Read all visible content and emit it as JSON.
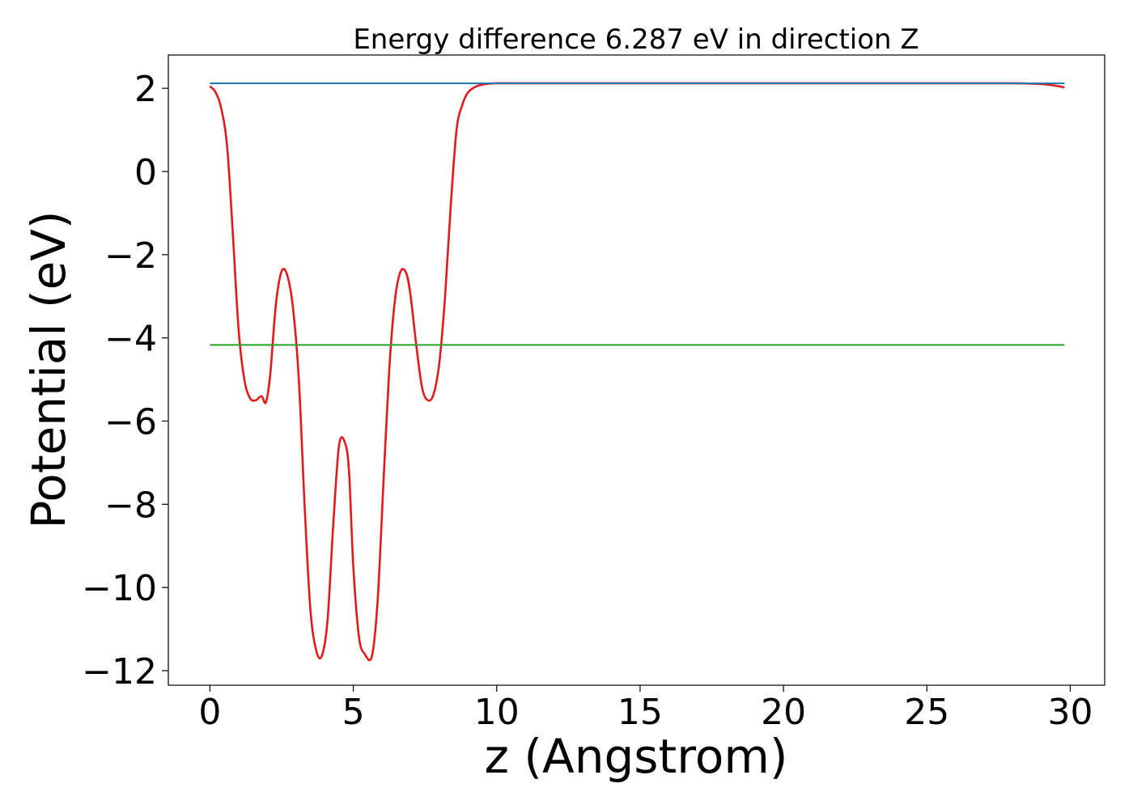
{
  "chart_data": {
    "type": "line",
    "title": "Energy difference 6.287 eV in direction Z",
    "xlabel": "z (Angstrom)",
    "ylabel": "Potential (eV)",
    "xlim": [
      -1.45,
      31.2
    ],
    "ylim": [
      -12.35,
      2.8
    ],
    "x_ticks": [
      0,
      5,
      10,
      15,
      20,
      25,
      30
    ],
    "y_ticks": [
      2,
      0,
      -2,
      -4,
      -6,
      -8,
      -10,
      -12
    ],
    "grid": false,
    "legend": "none",
    "series": [
      {
        "color": "#e31a1c",
        "style": "curve",
        "x": [
          0,
          0.2,
          0.4,
          0.6,
          0.8,
          1.0,
          1.2,
          1.4,
          1.6,
          1.8,
          1.95,
          2.1,
          2.3,
          2.5,
          2.7,
          2.9,
          3.1,
          3.3,
          3.5,
          3.7,
          3.9,
          4.1,
          4.3,
          4.5,
          4.7,
          4.85,
          5.0,
          5.2,
          5.4,
          5.65,
          5.85,
          6.05,
          6.25,
          6.45,
          6.65,
          6.85,
          7.0,
          7.2,
          7.4,
          7.6,
          7.8,
          8.0,
          8.2,
          8.4,
          8.6,
          8.8,
          9.0,
          9.3,
          9.6,
          10.0,
          10.5,
          11.0,
          12,
          15,
          20,
          25,
          28,
          29,
          29.5,
          29.8
        ],
        "y": [
          2.05,
          1.9,
          1.5,
          0.6,
          -1.5,
          -3.8,
          -5.0,
          -5.45,
          -5.5,
          -5.4,
          -5.55,
          -4.9,
          -3.2,
          -2.4,
          -2.5,
          -3.3,
          -5.0,
          -8.0,
          -10.5,
          -11.5,
          -11.65,
          -10.8,
          -8.5,
          -6.6,
          -6.5,
          -7.2,
          -9.5,
          -11.2,
          -11.6,
          -11.65,
          -10.3,
          -7.5,
          -4.8,
          -3.1,
          -2.4,
          -2.45,
          -3.0,
          -4.2,
          -5.2,
          -5.5,
          -5.35,
          -4.6,
          -3.0,
          -0.8,
          1.0,
          1.6,
          1.9,
          2.05,
          2.1,
          2.12,
          2.12,
          2.12,
          2.12,
          2.12,
          2.12,
          2.12,
          2.12,
          2.1,
          2.06,
          2.02
        ]
      },
      {
        "color": "#1f77b4",
        "style": "flat",
        "x": [
          0,
          29.8
        ],
        "y": [
          2.12,
          2.12
        ]
      },
      {
        "color": "#2ca02c",
        "style": "flat",
        "x": [
          0,
          29.8
        ],
        "y": [
          -4.17,
          -4.17
        ]
      }
    ]
  }
}
